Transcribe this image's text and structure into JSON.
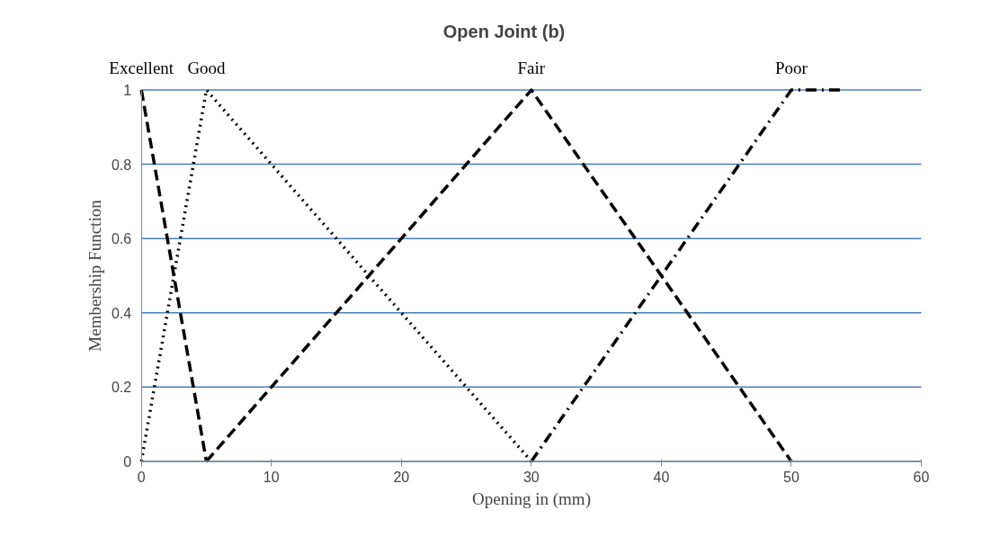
{
  "chart_data": {
    "type": "line",
    "title": "Open Joint (b)",
    "xlabel": "Opening in (mm)",
    "ylabel": "Membership Function",
    "xlim": [
      0,
      60
    ],
    "xticks": [
      0,
      10,
      20,
      30,
      40,
      50,
      60
    ],
    "ylim": [
      0,
      1
    ],
    "yticks": [
      0,
      0.2,
      0.4,
      0.6,
      0.8,
      1
    ],
    "grid": "y",
    "marker": "none",
    "series": [
      {
        "name": "Excellent",
        "color": "#000000",
        "line_style": "dashed",
        "x": [
          0,
          5
        ],
        "values": [
          1,
          0
        ]
      },
      {
        "name": "Good",
        "color": "#000000",
        "line_style": "dotted",
        "x": [
          0,
          5,
          30
        ],
        "values": [
          0,
          1,
          0
        ]
      },
      {
        "name": "Fair",
        "color": "#000000",
        "line_style": "dashed",
        "x": [
          5,
          30,
          50
        ],
        "values": [
          0,
          1,
          0
        ]
      },
      {
        "name": "Poor",
        "color": "#000000",
        "line_style": "dashdot",
        "x": [
          30,
          50,
          54
        ],
        "values": [
          0,
          1,
          1
        ]
      }
    ]
  }
}
